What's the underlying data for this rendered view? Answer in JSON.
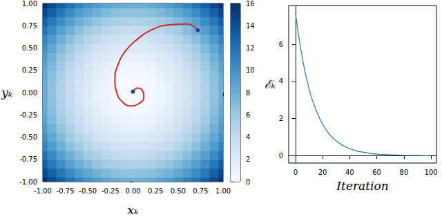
{
  "chart_data": [
    {
      "type": "heatmap",
      "x_label": "xₖ",
      "y_label": "yₖ",
      "xlim": [
        -1,
        1
      ],
      "ylim": [
        -1,
        1
      ],
      "xticks": [
        {
          "value": -1,
          "label": "-1.00"
        },
        {
          "value": -0.75,
          "label": "-0.75"
        },
        {
          "value": -0.5,
          "label": "-0.50"
        },
        {
          "value": -0.25,
          "label": "-0.25"
        },
        {
          "value": 0,
          "label": "0.00"
        },
        {
          "value": 0.25,
          "label": "0.25"
        },
        {
          "value": 0.5,
          "label": "0.50"
        },
        {
          "value": 0.75,
          "label": "0.75"
        },
        {
          "value": 1,
          "label": "1.00"
        }
      ],
      "yticks": [
        {
          "value": -1,
          "label": "-1.00"
        },
        {
          "value": -0.75,
          "label": "-0.75"
        },
        {
          "value": -0.5,
          "label": "-0.50"
        },
        {
          "value": -0.25,
          "label": "-0.25"
        },
        {
          "value": 0,
          "label": "0.00"
        },
        {
          "value": 0.25,
          "label": "0.25"
        },
        {
          "value": 0.5,
          "label": "0.50"
        },
        {
          "value": 0.75,
          "label": "0.75"
        },
        {
          "value": 1,
          "label": "1.00"
        }
      ],
      "cells": {
        "x": [
          -1,
          -0.9,
          -0.8,
          -0.7,
          -0.6,
          -0.5,
          -0.4,
          -0.3,
          -0.2,
          -0.1,
          0,
          0.1,
          0.2,
          0.3,
          0.4,
          0.5,
          0.6,
          0.7,
          0.8,
          0.9,
          1
        ],
        "y": [
          -1,
          -0.9,
          -0.8,
          -0.7,
          -0.6,
          -0.5,
          -0.4,
          -0.3,
          -0.2,
          -0.1,
          0,
          0.1,
          0.2,
          0.3,
          0.4,
          0.5,
          0.6,
          0.7,
          0.8,
          0.9,
          1
        ],
        "z": [
          [
            16,
            14.48,
            13.12,
            11.92,
            10.88,
            10,
            9.28,
            8.72,
            8.32,
            8.08,
            8,
            8.08,
            8.32,
            8.72,
            9.28,
            10,
            10.88,
            11.92,
            13.12,
            14.48,
            16
          ],
          [
            14.48,
            12.96,
            11.6,
            10.4,
            9.36,
            8.48,
            7.76,
            7.2,
            6.8,
            6.56,
            6.48,
            6.56,
            6.8,
            7.2,
            7.76,
            8.48,
            9.36,
            10.4,
            11.6,
            12.96,
            14.48
          ],
          [
            13.12,
            11.6,
            10.24,
            9.04,
            8,
            7.12,
            6.4,
            5.84,
            5.44,
            5.2,
            5.12,
            5.2,
            5.44,
            5.84,
            6.4,
            7.12,
            8,
            9.04,
            10.24,
            11.6,
            13.12
          ],
          [
            11.92,
            10.4,
            9.04,
            7.84,
            6.8,
            5.92,
            5.2,
            4.64,
            4.24,
            4,
            3.92,
            4,
            4.24,
            4.64,
            5.2,
            5.92,
            6.8,
            7.84,
            9.04,
            10.4,
            11.92
          ],
          [
            10.88,
            9.36,
            8,
            6.8,
            5.76,
            4.88,
            4.16,
            3.6,
            3.2,
            2.96,
            2.88,
            2.96,
            3.2,
            3.6,
            4.16,
            4.88,
            5.76,
            6.8,
            8,
            9.36,
            10.88
          ],
          [
            10,
            8.48,
            7.12,
            5.92,
            4.88,
            4,
            3.28,
            2.72,
            2.32,
            2.08,
            2,
            2.08,
            2.32,
            2.72,
            3.28,
            4,
            4.88,
            5.92,
            7.12,
            8.48,
            10
          ],
          [
            9.28,
            7.76,
            6.4,
            5.2,
            4.16,
            3.28,
            2.56,
            2,
            1.6,
            1.36,
            1.28,
            1.36,
            1.6,
            2,
            2.56,
            3.28,
            4.16,
            5.2,
            6.4,
            7.76,
            9.28
          ],
          [
            8.72,
            7.2,
            5.84,
            4.64,
            3.6,
            2.72,
            2,
            1.44,
            1.04,
            0.8,
            0.72,
            0.8,
            1.04,
            1.44,
            2,
            2.72,
            3.6,
            4.64,
            5.84,
            7.2,
            8.72
          ],
          [
            8.32,
            6.8,
            5.44,
            4.24,
            3.2,
            2.32,
            1.6,
            1.04,
            0.64,
            0.4,
            0.32,
            0.4,
            0.64,
            1.04,
            1.6,
            2.32,
            3.2,
            4.24,
            5.44,
            6.8,
            8.32
          ],
          [
            8.08,
            6.56,
            5.2,
            4,
            2.96,
            2.08,
            1.36,
            0.8,
            0.4,
            0.16,
            0.08,
            0.16,
            0.4,
            0.8,
            1.36,
            2.08,
            2.96,
            4,
            5.2,
            6.56,
            8.08
          ],
          [
            8,
            6.48,
            5.12,
            3.92,
            2.88,
            2,
            1.28,
            0.72,
            0.32,
            0.08,
            0,
            0.08,
            0.32,
            0.72,
            1.28,
            2,
            2.88,
            3.92,
            5.12,
            6.48,
            8
          ],
          [
            8.08,
            6.56,
            5.2,
            4,
            2.96,
            2.08,
            1.36,
            0.8,
            0.4,
            0.16,
            0.08,
            0.16,
            0.4,
            0.8,
            1.36,
            2.08,
            2.96,
            4,
            5.2,
            6.56,
            8.08
          ],
          [
            8.32,
            6.8,
            5.44,
            4.24,
            3.2,
            2.32,
            1.6,
            1.04,
            0.64,
            0.4,
            0.32,
            0.4,
            0.64,
            1.04,
            1.6,
            2.32,
            3.2,
            4.24,
            5.44,
            6.8,
            8.32
          ],
          [
            8.72,
            7.2,
            5.84,
            4.64,
            3.6,
            2.72,
            2,
            1.44,
            1.04,
            0.8,
            0.72,
            0.8,
            1.04,
            1.44,
            2,
            2.72,
            3.6,
            4.64,
            5.84,
            7.2,
            8.72
          ],
          [
            9.28,
            7.76,
            6.4,
            5.2,
            4.16,
            3.28,
            2.56,
            2,
            1.6,
            1.36,
            1.28,
            1.36,
            1.6,
            2,
            2.56,
            3.28,
            4.16,
            5.2,
            6.4,
            7.76,
            9.28
          ],
          [
            10,
            8.48,
            7.12,
            5.92,
            4.88,
            4,
            3.28,
            2.72,
            2.32,
            2.08,
            2,
            2.08,
            2.32,
            2.72,
            3.28,
            4,
            4.88,
            5.92,
            7.12,
            8.48,
            10
          ],
          [
            10.88,
            9.36,
            8,
            6.8,
            5.76,
            4.88,
            4.16,
            3.6,
            3.2,
            2.96,
            2.88,
            2.96,
            3.2,
            3.6,
            4.16,
            4.88,
            5.76,
            6.8,
            8,
            9.36,
            10.88
          ],
          [
            11.92,
            10.4,
            9.04,
            7.84,
            6.8,
            5.92,
            5.2,
            4.64,
            4.24,
            4,
            3.92,
            4,
            4.24,
            4.64,
            5.2,
            5.92,
            6.8,
            7.84,
            9.04,
            10.4,
            11.92
          ],
          [
            13.12,
            11.6,
            10.24,
            9.04,
            8,
            7.12,
            6.4,
            5.84,
            5.44,
            5.2,
            5.12,
            5.2,
            5.44,
            5.84,
            6.4,
            7.12,
            8,
            9.04,
            10.24,
            11.6,
            13.12
          ],
          [
            14.48,
            12.96,
            11.6,
            10.4,
            9.36,
            8.48,
            7.76,
            7.2,
            6.8,
            6.56,
            6.48,
            6.56,
            6.8,
            7.2,
            7.76,
            8.48,
            9.36,
            10.4,
            11.6,
            12.96,
            14.48
          ],
          [
            16,
            14.48,
            13.12,
            11.92,
            10.88,
            10,
            9.28,
            8.72,
            8.32,
            8.08,
            8,
            8.08,
            8.32,
            8.72,
            9.28,
            10,
            10.88,
            11.92,
            13.12,
            14.48,
            16
          ]
        ]
      },
      "colorbar": {
        "range": [
          0,
          16
        ],
        "ticks": [
          0,
          2,
          4,
          6,
          8,
          10,
          12,
          14,
          16
        ]
      },
      "series": [
        {
          "type": "line",
          "color": "#d62728",
          "marker": "circle",
          "x": [
            0.72,
            0.6,
            0.4,
            0.2,
            0.05,
            -0.08,
            -0.17,
            -0.2,
            -0.18,
            -0.12,
            -0.03,
            0.07,
            0.12,
            0.1,
            0.05,
            0
          ],
          "y": [
            0.7,
            0.77,
            0.76,
            0.7,
            0.6,
            0.47,
            0.3,
            0.15,
            0,
            -0.1,
            -0.15,
            -0.12,
            -0.05,
            0.03,
            0.05,
            0.01
          ]
        }
      ]
    },
    {
      "type": "line",
      "x_label": "Iteration",
      "y_label": "ℰₖ",
      "x": [
        0,
        5,
        10,
        15,
        20,
        25,
        30,
        35,
        40,
        45,
        50,
        55,
        60,
        65,
        70,
        75,
        80,
        85,
        90,
        95,
        99
      ],
      "values": [
        7.7,
        5.3,
        3.6,
        2.5,
        1.7,
        1.15,
        0.8,
        0.55,
        0.38,
        0.26,
        0.18,
        0.12,
        0.08,
        0.06,
        0.04,
        0.03,
        0.02,
        0.01,
        0.01,
        0,
        0
      ],
      "color": "#1f77b4",
      "xlim": [
        -5,
        104
      ],
      "ylim": [
        -0.4,
        8.1
      ],
      "xticks": [
        0,
        20,
        40,
        60,
        80,
        100
      ],
      "yticks": [
        0,
        2,
        4,
        6
      ]
    }
  ]
}
